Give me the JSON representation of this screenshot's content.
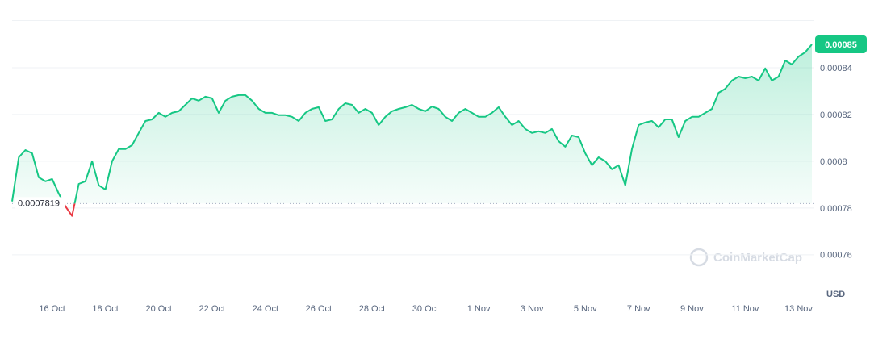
{
  "chart_data": {
    "type": "line",
    "series": [
      {
        "name": "Price",
        "color": "#16c784",
        "down_color": "#ea3943",
        "values": [
          0.0007828,
          0.0008017,
          0.0008048,
          0.0008034,
          0.0007931,
          0.0007914,
          0.0007924,
          0.0007862,
          0.0007807,
          0.0007766,
          0.0007903,
          0.0007914,
          0.0008,
          0.0007897,
          0.0007879,
          0.0008,
          0.0008052,
          0.0008052,
          0.0008069,
          0.0008121,
          0.0008172,
          0.0008179,
          0.0008207,
          0.000819,
          0.0008207,
          0.0008214,
          0.0008241,
          0.0008269,
          0.0008259,
          0.0008276,
          0.0008269,
          0.0008207,
          0.0008259,
          0.0008276,
          0.0008283,
          0.0008283,
          0.0008259,
          0.0008224,
          0.0008207,
          0.0008207,
          0.0008197,
          0.0008197,
          0.000819,
          0.0008172,
          0.0008207,
          0.0008224,
          0.0008231,
          0.0008172,
          0.0008179,
          0.0008224,
          0.0008248,
          0.0008241,
          0.0008207,
          0.0008224,
          0.0008207,
          0.0008155,
          0.000819,
          0.0008214,
          0.0008224,
          0.0008231,
          0.0008241,
          0.0008224,
          0.0008214,
          0.0008234,
          0.0008224,
          0.000819,
          0.0008172,
          0.0008207,
          0.0008224,
          0.0008207,
          0.000819,
          0.000819,
          0.0008207,
          0.0008231,
          0.000819,
          0.0008155,
          0.0008172,
          0.0008138,
          0.0008121,
          0.0008128,
          0.0008121,
          0.0008138,
          0.0008086,
          0.0008062,
          0.000811,
          0.0008103,
          0.0008034,
          0.0007983,
          0.0008017,
          0.0008,
          0.0007966,
          0.0007983,
          0.0007897,
          0.0008052,
          0.0008155,
          0.0008166,
          0.0008172,
          0.0008145,
          0.0008179,
          0.0008179,
          0.0008103,
          0.0008172,
          0.000819,
          0.000819,
          0.0008207,
          0.0008224,
          0.0008293,
          0.000831,
          0.0008345,
          0.0008362,
          0.0008355,
          0.0008362,
          0.0008345,
          0.0008397,
          0.0008345,
          0.0008362,
          0.0008431,
          0.0008414,
          0.0008448,
          0.0008466,
          0.00085
        ]
      }
    ],
    "baseline": 0.0007819,
    "xlim": [
      0,
      120
    ],
    "xticks": [
      {
        "value": 6,
        "label": "16 Oct"
      },
      {
        "value": 14,
        "label": "18 Oct"
      },
      {
        "value": 22,
        "label": "20 Oct"
      },
      {
        "value": 30,
        "label": "22 Oct"
      },
      {
        "value": 38,
        "label": "24 Oct"
      },
      {
        "value": 46,
        "label": "26 Oct"
      },
      {
        "value": 54,
        "label": "28 Oct"
      },
      {
        "value": 62,
        "label": "30 Oct"
      },
      {
        "value": 70,
        "label": "1 Nov"
      },
      {
        "value": 78,
        "label": "3 Nov"
      },
      {
        "value": 86,
        "label": "5 Nov"
      },
      {
        "value": 94,
        "label": "7 Nov"
      },
      {
        "value": 102,
        "label": "9 Nov"
      },
      {
        "value": 110,
        "label": "11 Nov"
      },
      {
        "value": 118,
        "label": "13 Nov"
      }
    ],
    "ylim": [
      0.000742,
      0.00086
    ],
    "yticks": [
      0.00076,
      0.00078,
      0.0008,
      0.00082,
      0.00084
    ],
    "grid": true,
    "currency": "USD",
    "watermark": "CoinMarketCap"
  }
}
